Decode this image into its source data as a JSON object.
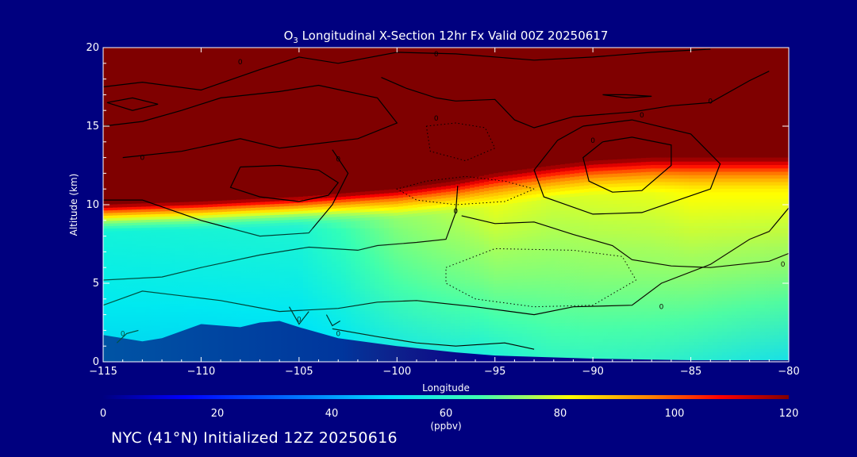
{
  "chart_data": {
    "type": "heatmap",
    "title_parts": [
      "O",
      "3",
      " Longitudinal X-Section 12hr  Fx Valid 00Z 20250617"
    ],
    "xlabel": "Longitude",
    "ylabel": "Altitude (km)",
    "xlim": [
      -115,
      -80
    ],
    "ylim": [
      0,
      20
    ],
    "x_ticks": [
      -115,
      -110,
      -105,
      -100,
      -95,
      -90,
      -85,
      -80
    ],
    "x_tick_labels": [
      "−115",
      "−110",
      "−105",
      "−100",
      "−95",
      "−90",
      "−85",
      "−80"
    ],
    "y_ticks": [
      0,
      5,
      10,
      15,
      20
    ],
    "y_tick_labels": [
      "0",
      "5",
      "10",
      "15",
      "20"
    ],
    "colorbar": {
      "label": "(ppbv)",
      "range": [
        0,
        120
      ],
      "ticks": [
        0,
        20,
        40,
        60,
        80,
        100,
        120
      ],
      "tick_labels": [
        "0",
        "20",
        "40",
        "60",
        "80",
        "100",
        "120"
      ]
    },
    "ozone_columns": {
      "longitudes": [
        -115,
        -110,
        -105,
        -100,
        -97,
        -95,
        -92,
        -90,
        -87,
        -85,
        -80
      ],
      "tropopause_km": [
        10.0,
        10.2,
        10.5,
        11.0,
        11.5,
        12.0,
        12.5,
        12.8,
        13.0,
        13.0,
        13.0
      ],
      "lower_ppbv": [
        45,
        45,
        46,
        50,
        53,
        55,
        58,
        58,
        57,
        55,
        50
      ],
      "mid_ppbv": [
        55,
        56,
        57,
        70,
        74,
        78,
        76,
        77,
        78,
        80,
        80
      ]
    },
    "terrain_km": {
      "longitudes": [
        -115,
        -113,
        -112,
        -110,
        -108,
        -107,
        -106,
        -105,
        -103,
        -100,
        -97,
        -95,
        -90,
        -85,
        -80
      ],
      "altitude": [
        1.7,
        1.3,
        1.5,
        2.4,
        2.2,
        2.5,
        2.6,
        2.2,
        1.5,
        1.0,
        0.6,
        0.4,
        0.2,
        0.1,
        0.1
      ]
    },
    "contour_labels": [
      "0",
      "0",
      "0",
      "0",
      "0",
      "0",
      "0",
      "0",
      "0",
      "0",
      "0",
      "0",
      "0",
      "0"
    ],
    "colors": {
      "background": "#00007f",
      "stratosphere": "#7f0000",
      "terrain": "#00008f"
    }
  },
  "footer": "NYC (41°N) Initialized 12Z 20250616"
}
